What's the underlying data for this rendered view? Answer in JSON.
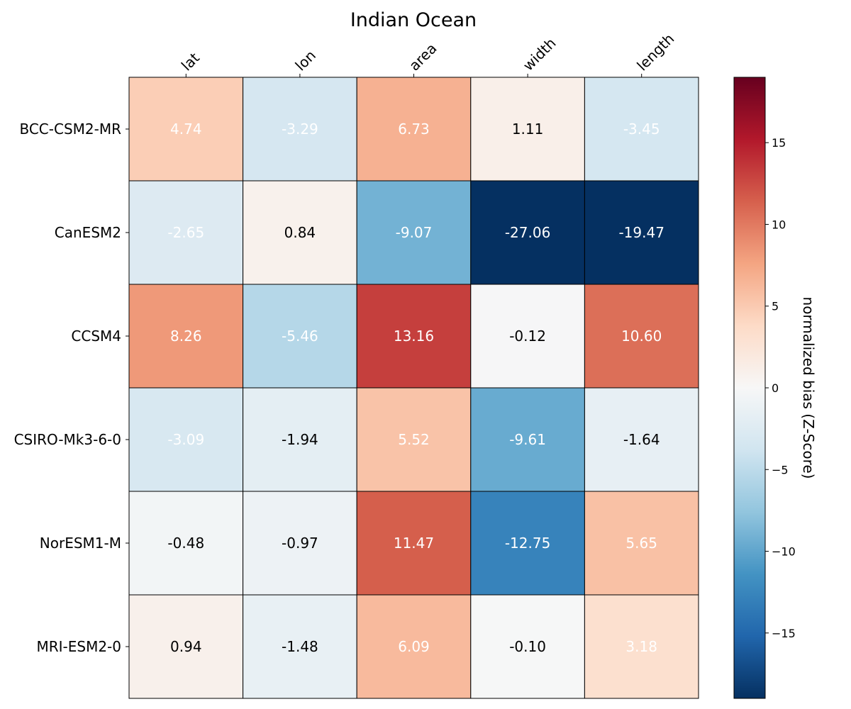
{
  "chart_data": {
    "type": "heatmap",
    "title": "Indian Ocean",
    "rows": [
      "BCC-CSM2-MR",
      "CanESM2",
      "CCSM4",
      "CSIRO-Mk3-6-0",
      "NorESM1-M",
      "MRI-ESM2-0"
    ],
    "columns": [
      "lat",
      "lon",
      "area",
      "width",
      "length"
    ],
    "values": [
      [
        4.74,
        -3.29,
        6.73,
        1.11,
        -3.45
      ],
      [
        -2.65,
        0.84,
        -9.07,
        -27.06,
        -19.47
      ],
      [
        8.26,
        -5.46,
        13.16,
        -0.12,
        10.6
      ],
      [
        -3.09,
        -1.94,
        5.52,
        -9.61,
        -1.64
      ],
      [
        -0.48,
        -0.97,
        11.47,
        -12.75,
        5.65
      ],
      [
        0.94,
        -1.48,
        6.09,
        -0.1,
        3.18
      ]
    ],
    "value_labels": [
      [
        "4.74",
        "-3.29",
        "6.73",
        "1.11",
        "-3.45"
      ],
      [
        "-2.65",
        "0.84",
        "-9.07",
        "-27.06",
        "-19.47"
      ],
      [
        "8.26",
        "-5.46",
        "13.16",
        "-0.12",
        "10.60"
      ],
      [
        "-3.09",
        "-1.94",
        "5.52",
        "-9.61",
        "-1.64"
      ],
      [
        "-0.48",
        "-0.97",
        "11.47",
        "-12.75",
        "5.65"
      ],
      [
        "0.94",
        "-1.48",
        "6.09",
        "-0.10",
        "3.18"
      ]
    ],
    "label_colors": [
      [
        "#ffffff",
        "#ffffff",
        "#ffffff",
        "#000000",
        "#ffffff"
      ],
      [
        "#ffffff",
        "#000000",
        "#ffffff",
        "#ffffff",
        "#ffffff"
      ],
      [
        "#ffffff",
        "#ffffff",
        "#ffffff",
        "#000000",
        "#ffffff"
      ],
      [
        "#ffffff",
        "#000000",
        "#ffffff",
        "#ffffff",
        "#000000"
      ],
      [
        "#000000",
        "#000000",
        "#ffffff",
        "#ffffff",
        "#ffffff"
      ],
      [
        "#000000",
        "#000000",
        "#ffffff",
        "#000000",
        "#ffffff"
      ]
    ],
    "colormap": "RdBu_r",
    "vmin": -19,
    "vmax": 19,
    "colorbar": {
      "label": "normalized bias (Z-Score)",
      "ticks": [
        -15,
        -10,
        -5,
        0,
        5,
        10,
        15
      ],
      "tick_labels": [
        "−15",
        "−10",
        "−5",
        "0",
        "5",
        "10",
        "15"
      ]
    }
  }
}
